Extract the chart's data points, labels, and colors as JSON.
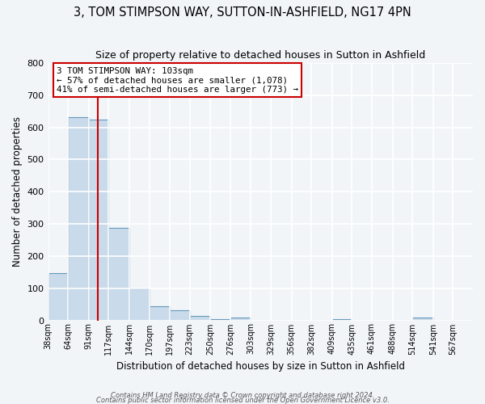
{
  "title": "3, TOM STIMPSON WAY, SUTTON-IN-ASHFIELD, NG17 4PN",
  "subtitle": "Size of property relative to detached houses in Sutton in Ashfield",
  "xlabel": "Distribution of detached houses by size in Sutton in Ashfield",
  "ylabel": "Number of detached properties",
  "bin_labels": [
    "38sqm",
    "64sqm",
    "91sqm",
    "117sqm",
    "144sqm",
    "170sqm",
    "197sqm",
    "223sqm",
    "250sqm",
    "276sqm",
    "303sqm",
    "329sqm",
    "356sqm",
    "382sqm",
    "409sqm",
    "435sqm",
    "461sqm",
    "488sqm",
    "514sqm",
    "541sqm",
    "567sqm"
  ],
  "bar_values": [
    148,
    632,
    625,
    287,
    100,
    45,
    32,
    13,
    5,
    8,
    0,
    0,
    0,
    0,
    5,
    0,
    0,
    0,
    8,
    0,
    0
  ],
  "bar_color": "#c9daea",
  "bar_edge_color": "#6699bb",
  "property_line_x": 103,
  "bin_edges": [
    38,
    64,
    91,
    117,
    144,
    170,
    197,
    223,
    250,
    276,
    303,
    329,
    356,
    382,
    409,
    435,
    461,
    488,
    514,
    541,
    567,
    593
  ],
  "annotation_title": "3 TOM STIMPSON WAY: 103sqm",
  "annotation_line1": "← 57% of detached houses are smaller (1,078)",
  "annotation_line2": "41% of semi-detached houses are larger (773) →",
  "annotation_box_color": "#ffffff",
  "annotation_box_edge": "#cc0000",
  "vline_color": "#cc0000",
  "ylim": [
    0,
    800
  ],
  "yticks": [
    0,
    100,
    200,
    300,
    400,
    500,
    600,
    700,
    800
  ],
  "footer1": "Contains HM Land Registry data © Crown copyright and database right 2024.",
  "footer2": "Contains public sector information licensed under the Open Government Licence v3.0.",
  "bg_color": "#f2f5f8",
  "plot_bg_color": "#f2f5f8",
  "grid_color": "#ffffff",
  "title_fontsize": 10.5,
  "subtitle_fontsize": 9
}
